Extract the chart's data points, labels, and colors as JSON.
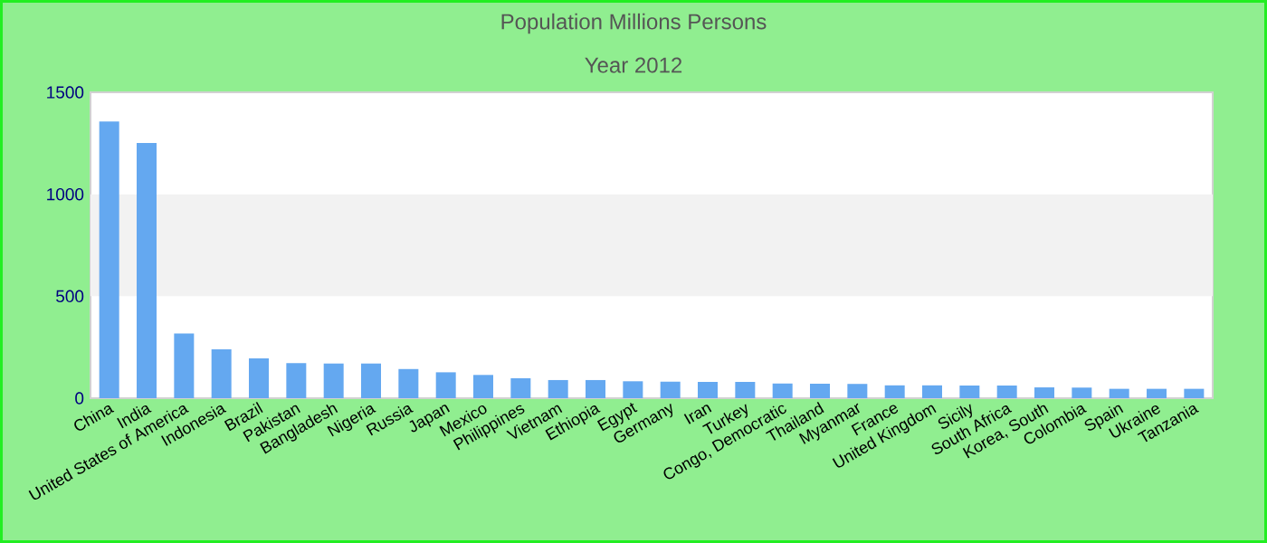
{
  "chart_data": {
    "type": "bar",
    "title": "Population Millions Persons",
    "subtitle": "Year 2012",
    "categories": [
      "China",
      "India",
      "United States of America",
      "Indonesia",
      "Brazil",
      "Pakistan",
      "Bangladesh",
      "Nigeria",
      "Russia",
      "Japan",
      "Mexico",
      "Philippines",
      "Vietnam",
      "Ethiopia",
      "Egypt",
      "Germany",
      "Iran",
      "Turkey",
      "Congo, Democratic",
      "Thailand",
      "Myanmar",
      "France",
      "United Kingdom",
      "Sicily",
      "South Africa",
      "Korea, South",
      "Colombia",
      "Spain",
      "Ukraine",
      "Tanzania"
    ],
    "values": [
      1357,
      1251,
      317,
      240,
      195,
      172,
      170,
      170,
      143,
      127,
      114,
      98,
      89,
      89,
      83,
      81,
      80,
      80,
      72,
      71,
      70,
      63,
      63,
      62,
      62,
      53,
      52,
      46,
      46,
      46
    ],
    "color": "#64a8f0",
    "ylim": [
      0,
      1500
    ],
    "yticks": [
      0,
      500,
      1000,
      1500
    ],
    "bands": [
      {
        "axis": "y",
        "from": 500,
        "to": 1000,
        "color": "#f2f2f2"
      }
    ]
  }
}
